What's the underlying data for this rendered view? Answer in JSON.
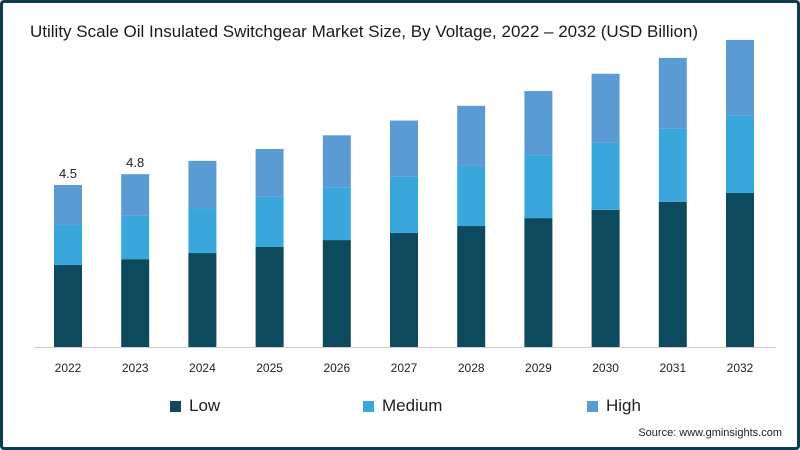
{
  "chart_data": {
    "type": "bar",
    "stacked": true,
    "title": "Utility Scale Oil Insulated Switchgear Market Size, By Voltage, 2022 – 2032 (USD Billion)",
    "xlabel": "",
    "ylabel": "",
    "categories": [
      "2022",
      "2023",
      "2024",
      "2025",
      "2026",
      "2027",
      "2028",
      "2029",
      "2030",
      "2031",
      "2032"
    ],
    "series": [
      {
        "name": "Low",
        "color": "#0d4a5e",
        "values": [
          2.28,
          2.44,
          2.61,
          2.78,
          2.97,
          3.17,
          3.36,
          3.58,
          3.81,
          4.03,
          4.28
        ]
      },
      {
        "name": "Medium",
        "color": "#3aa7dc",
        "values": [
          1.11,
          1.22,
          1.25,
          1.39,
          1.47,
          1.56,
          1.67,
          1.75,
          1.86,
          2.03,
          2.14
        ]
      },
      {
        "name": "High",
        "color": "#5a9bd3",
        "values": [
          1.11,
          1.14,
          1.31,
          1.33,
          1.44,
          1.56,
          1.67,
          1.78,
          1.92,
          1.97,
          2.11
        ]
      }
    ],
    "data_labels": [
      {
        "category": "2022",
        "text": "4.5"
      },
      {
        "category": "2023",
        "text": "4.8"
      }
    ],
    "ylim": [
      0,
      8.6
    ],
    "grid": false,
    "legend_position": "bottom"
  },
  "source": "Source: www.gminsights.com"
}
